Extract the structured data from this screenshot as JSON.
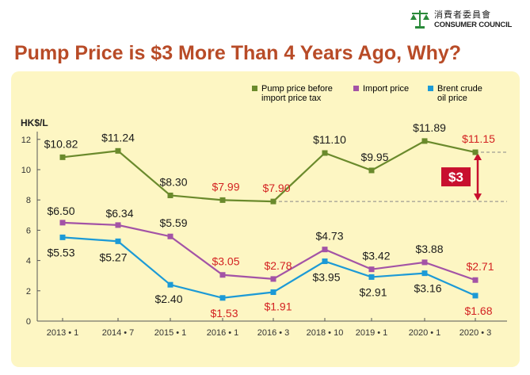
{
  "header": {
    "org_chinese": "消費者委員會",
    "org_english": "CONSUMER COUNCIL",
    "title": "Pump Price is $3 More Than 4 Years Ago, Why?"
  },
  "colors": {
    "title": "#b84b27",
    "panel": "#fdf6c3",
    "pump": "#6a8a2c",
    "import": "#a353a6",
    "brent": "#1c9ad6",
    "label_black": "#1a1a1a",
    "label_red": "#d32222",
    "badge": "#c8102e"
  },
  "chart_data": {
    "type": "line",
    "title": "Pump Price is $3 More Than 4 Years Ago, Why?",
    "ylabel": "HK$/L",
    "ylim": [
      0,
      12
    ],
    "yticks": [
      0,
      2,
      4,
      6,
      8,
      10,
      12
    ],
    "grid": false,
    "legend": "top-right",
    "categories": [
      "2013 • 1",
      "2014 • 7",
      "2015 • 1",
      "2016 • 1",
      "2016 • 3",
      "2018 • 10",
      "2019 • 1",
      "2020 • 1",
      "2020 • 3"
    ],
    "series": [
      {
        "name": "Pump price before import price tax",
        "key": "pump",
        "values": [
          10.82,
          11.24,
          8.3,
          7.99,
          7.9,
          11.1,
          9.95,
          11.89,
          11.15
        ],
        "labels": [
          "$10.82",
          "$11.24",
          "$8.30",
          "$7.99",
          "$7.90",
          "$11.10",
          "$9.95",
          "$11.89",
          "$11.15"
        ],
        "highlighted": [
          false,
          false,
          false,
          true,
          true,
          false,
          false,
          false,
          true
        ]
      },
      {
        "name": "Import price",
        "key": "import",
        "values": [
          6.5,
          6.34,
          5.59,
          3.05,
          2.78,
          4.73,
          3.42,
          3.88,
          2.71
        ],
        "labels": [
          "$6.50",
          "$6.34",
          "$5.59",
          "$3.05",
          "$2.78",
          "$4.73",
          "$3.42",
          "$3.88",
          "$2.71"
        ],
        "highlighted": [
          false,
          false,
          false,
          true,
          true,
          false,
          false,
          false,
          true
        ]
      },
      {
        "name": "Brent crude oil price",
        "key": "brent",
        "values": [
          5.53,
          5.27,
          2.4,
          1.53,
          1.91,
          3.95,
          2.91,
          3.16,
          1.68
        ],
        "labels": [
          "$5.53",
          "$5.27",
          "$2.40",
          "$1.53",
          "$1.91",
          "$3.95",
          "$2.91",
          "$3.16",
          "$1.68"
        ],
        "highlighted": [
          false,
          false,
          false,
          true,
          true,
          false,
          false,
          false,
          true
        ]
      }
    ],
    "annotation": {
      "text": "$3",
      "from_value": 7.9,
      "to_value": 11.15
    }
  },
  "legend": {
    "pump_line1": "Pump price before",
    "pump_line2": "import price tax",
    "import_line1": "Import price",
    "brent_line1": "Brent crude",
    "brent_line2": "oil price"
  }
}
